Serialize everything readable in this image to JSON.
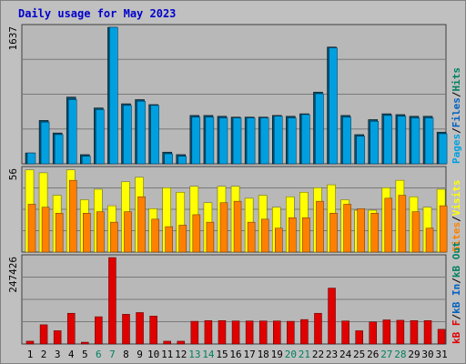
{
  "title": "Daily usage for May 2023",
  "colors": {
    "background": "#c0c0c0",
    "panel": "#b8b8b8",
    "title": "#0000cc",
    "pages": "#00a0e0",
    "hits": "#008060",
    "files": "#0060c0",
    "visits": "#ffff00",
    "sites": "#ff8000",
    "kbytes": "#e00000",
    "weekend_label": "#008060"
  },
  "chart_data": [
    {
      "type": "bar",
      "title": "Daily usage for May 2023",
      "legend": [
        "Hits",
        "Files",
        "Pages"
      ],
      "legend_separators": [
        "/",
        "/"
      ],
      "ymax_label": "1637",
      "ylim": [
        0,
        1637
      ],
      "grid": true,
      "series": [
        {
          "name": "Hits",
          "values": [
            130,
            520,
            370,
            800,
            110,
            670,
            1637,
            720,
            770,
            710,
            140,
            110,
            580,
            580,
            570,
            560,
            560,
            560,
            580,
            570,
            600,
            860,
            1400,
            580,
            350,
            530,
            600,
            590,
            570,
            570,
            380
          ]
        },
        {
          "name": "Files",
          "values": [
            130,
            500,
            350,
            770,
            90,
            650,
            1637,
            700,
            750,
            700,
            120,
            90,
            560,
            560,
            550,
            550,
            550,
            550,
            570,
            550,
            590,
            840,
            1390,
            560,
            330,
            510,
            580,
            570,
            550,
            550,
            360
          ]
        },
        {
          "name": "Pages",
          "values": [
            130,
            500,
            350,
            770,
            90,
            650,
            1637,
            700,
            750,
            700,
            120,
            90,
            560,
            560,
            550,
            550,
            550,
            550,
            570,
            550,
            590,
            840,
            1390,
            560,
            330,
            510,
            580,
            570,
            550,
            550,
            360
          ]
        }
      ]
    },
    {
      "type": "bar",
      "legend": [
        "Visits",
        "Sites"
      ],
      "legend_separators": [
        "/"
      ],
      "ymax_label": "56",
      "ylim": [
        0,
        56
      ],
      "grid": true,
      "series": [
        {
          "name": "Visits",
          "values": [
            55,
            53,
            38,
            55,
            35,
            42,
            31,
            47,
            50,
            29,
            43,
            40,
            44,
            33,
            44,
            44,
            36,
            38,
            30,
            37,
            40,
            43,
            45,
            35,
            28,
            28,
            43,
            48,
            37,
            30,
            42
          ]
        },
        {
          "name": "Sites",
          "values": [
            32,
            30,
            26,
            48,
            26,
            27,
            20,
            27,
            37,
            22,
            17,
            18,
            25,
            20,
            33,
            34,
            20,
            22,
            16,
            23,
            23,
            34,
            26,
            32,
            29,
            26,
            36,
            38,
            27,
            16,
            31
          ]
        }
      ]
    },
    {
      "type": "bar",
      "legend": [
        "kB F",
        "kB In",
        "kB Out"
      ],
      "legend_separators": [
        "/",
        "/"
      ],
      "ymax_label": "247426",
      "ylim": [
        0,
        247426
      ],
      "grid": true,
      "series": [
        {
          "name": "kB F",
          "values": [
            8000,
            55000,
            38000,
            88000,
            5000,
            78000,
            247426,
            85000,
            90000,
            80000,
            8000,
            8000,
            65000,
            67000,
            67000,
            66000,
            66000,
            66000,
            66000,
            65000,
            70000,
            88000,
            160000,
            66000,
            38000,
            63000,
            69000,
            68000,
            67000,
            67000,
            42000
          ]
        },
        {
          "name": "kB In",
          "values": [
            0,
            0,
            0,
            0,
            0,
            0,
            0,
            0,
            0,
            0,
            0,
            0,
            0,
            0,
            0,
            0,
            0,
            0,
            0,
            0,
            0,
            0,
            0,
            0,
            0,
            0,
            0,
            0,
            0,
            0,
            0
          ]
        },
        {
          "name": "kB Out",
          "values": [
            0,
            0,
            0,
            0,
            0,
            0,
            0,
            0,
            0,
            0,
            0,
            0,
            0,
            0,
            0,
            0,
            0,
            0,
            0,
            0,
            0,
            0,
            0,
            0,
            0,
            0,
            0,
            0,
            0,
            0,
            0
          ]
        }
      ]
    }
  ],
  "days": [
    "1",
    "2",
    "3",
    "4",
    "5",
    "6",
    "7",
    "8",
    "9",
    "10",
    "11",
    "12",
    "13",
    "14",
    "15",
    "16",
    "17",
    "18",
    "19",
    "20",
    "21",
    "22",
    "23",
    "24",
    "25",
    "26",
    "27",
    "28",
    "29",
    "30",
    "31"
  ],
  "weekend_days": [
    6,
    7,
    13,
    14,
    20,
    21,
    27,
    28
  ]
}
